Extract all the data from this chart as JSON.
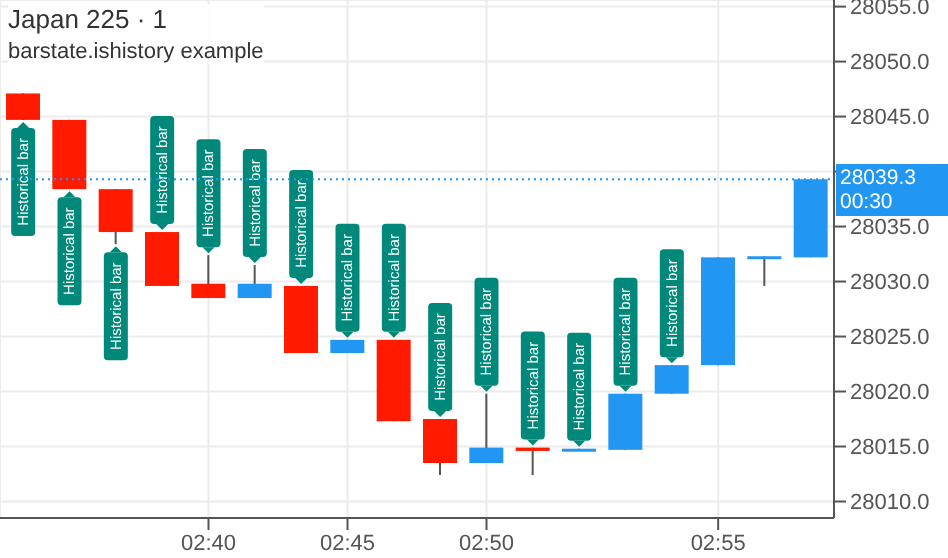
{
  "chart_data": {
    "type": "candlestick",
    "title": "Japan 225 · 1",
    "subtitle": "barstate.ishistory example",
    "categories": [
      null,
      null,
      null,
      null,
      "02:40",
      null,
      null,
      "02:45",
      null,
      null,
      "02:50",
      null,
      null,
      null,
      null,
      "02:55",
      null,
      null
    ],
    "ohlc": [
      [
        28047.1,
        28047.1,
        28044.7,
        28044.7
      ],
      [
        28044.7,
        28044.7,
        28038.4,
        28038.4
      ],
      [
        28038.4,
        28038.4,
        28033.4,
        28034.5
      ],
      [
        28034.5,
        28034.5,
        28029.6,
        28029.6
      ],
      [
        28029.8,
        28032.4,
        28028.5,
        28028.5
      ],
      [
        28028.5,
        28031.5,
        28028.5,
        28029.8
      ],
      [
        28029.6,
        28029.6,
        28023.5,
        28023.5
      ],
      [
        28023.5,
        28024.7,
        28023.5,
        28024.7
      ],
      [
        28024.7,
        28024.7,
        28017.3,
        28017.3
      ],
      [
        28017.5,
        28017.5,
        28012.4,
        28013.5
      ],
      [
        28013.5,
        28019.8,
        28013.5,
        28014.9
      ],
      [
        28014.9,
        28014.9,
        28012.4,
        28014.6
      ],
      [
        28014.6,
        28014.8,
        28014.6,
        28014.8
      ],
      [
        28014.7,
        28019.8,
        28014.7,
        28019.8
      ],
      [
        28019.8,
        28022.4,
        28019.8,
        28022.4
      ],
      [
        28022.4,
        28032.2,
        28022.4,
        28032.2
      ],
      [
        28032.2,
        28032.3,
        28029.6,
        28032.3
      ],
      [
        28032.2,
        28039.3,
        28032.2,
        28039.3
      ]
    ],
    "colors": [
      "#ff1a00",
      "#ff1a00",
      "#ff1a00",
      "#ff1a00",
      "#ff1a00",
      "#2196f3",
      "#ff1a00",
      "#2196f3",
      "#ff1a00",
      "#ff1a00",
      "#2196f3",
      "#ff1a00",
      "#2196f3",
      "#2196f3",
      "#2196f3",
      "#2196f3",
      "#2196f3",
      "#2196f3"
    ],
    "ylim": [
      28008.5,
      28055.6
    ],
    "yticks": [
      {
        "value": 28010,
        "label": "28010.0"
      },
      {
        "value": 28015,
        "label": "28015.0"
      },
      {
        "value": 28020,
        "label": "28020.0"
      },
      {
        "value": 28025,
        "label": "28025.0"
      },
      {
        "value": 28030,
        "label": "28030.0"
      },
      {
        "value": 28035,
        "label": "28035.0"
      },
      {
        "value": 28040,
        "label": null
      },
      {
        "value": 28045,
        "label": "28045.0"
      },
      {
        "value": 28050,
        "label": "28050.0"
      },
      {
        "value": 28055,
        "label": "28055.0"
      }
    ],
    "grid": true,
    "ref_lines": [
      {
        "axis": "y",
        "value": 28039.3,
        "label": "28039.3",
        "color": "#2196f3"
      }
    ],
    "annotations": [
      "Historical bar",
      "Historical bar",
      "Historical bar",
      "Historical bar",
      "Historical bar",
      "Historical bar",
      "Historical bar",
      "Historical bar",
      "Historical bar",
      "Historical bar",
      "Historical bar",
      "Historical bar",
      "Historical bar",
      "Historical bar",
      "Historical bar",
      "00:30"
    ]
  }
}
